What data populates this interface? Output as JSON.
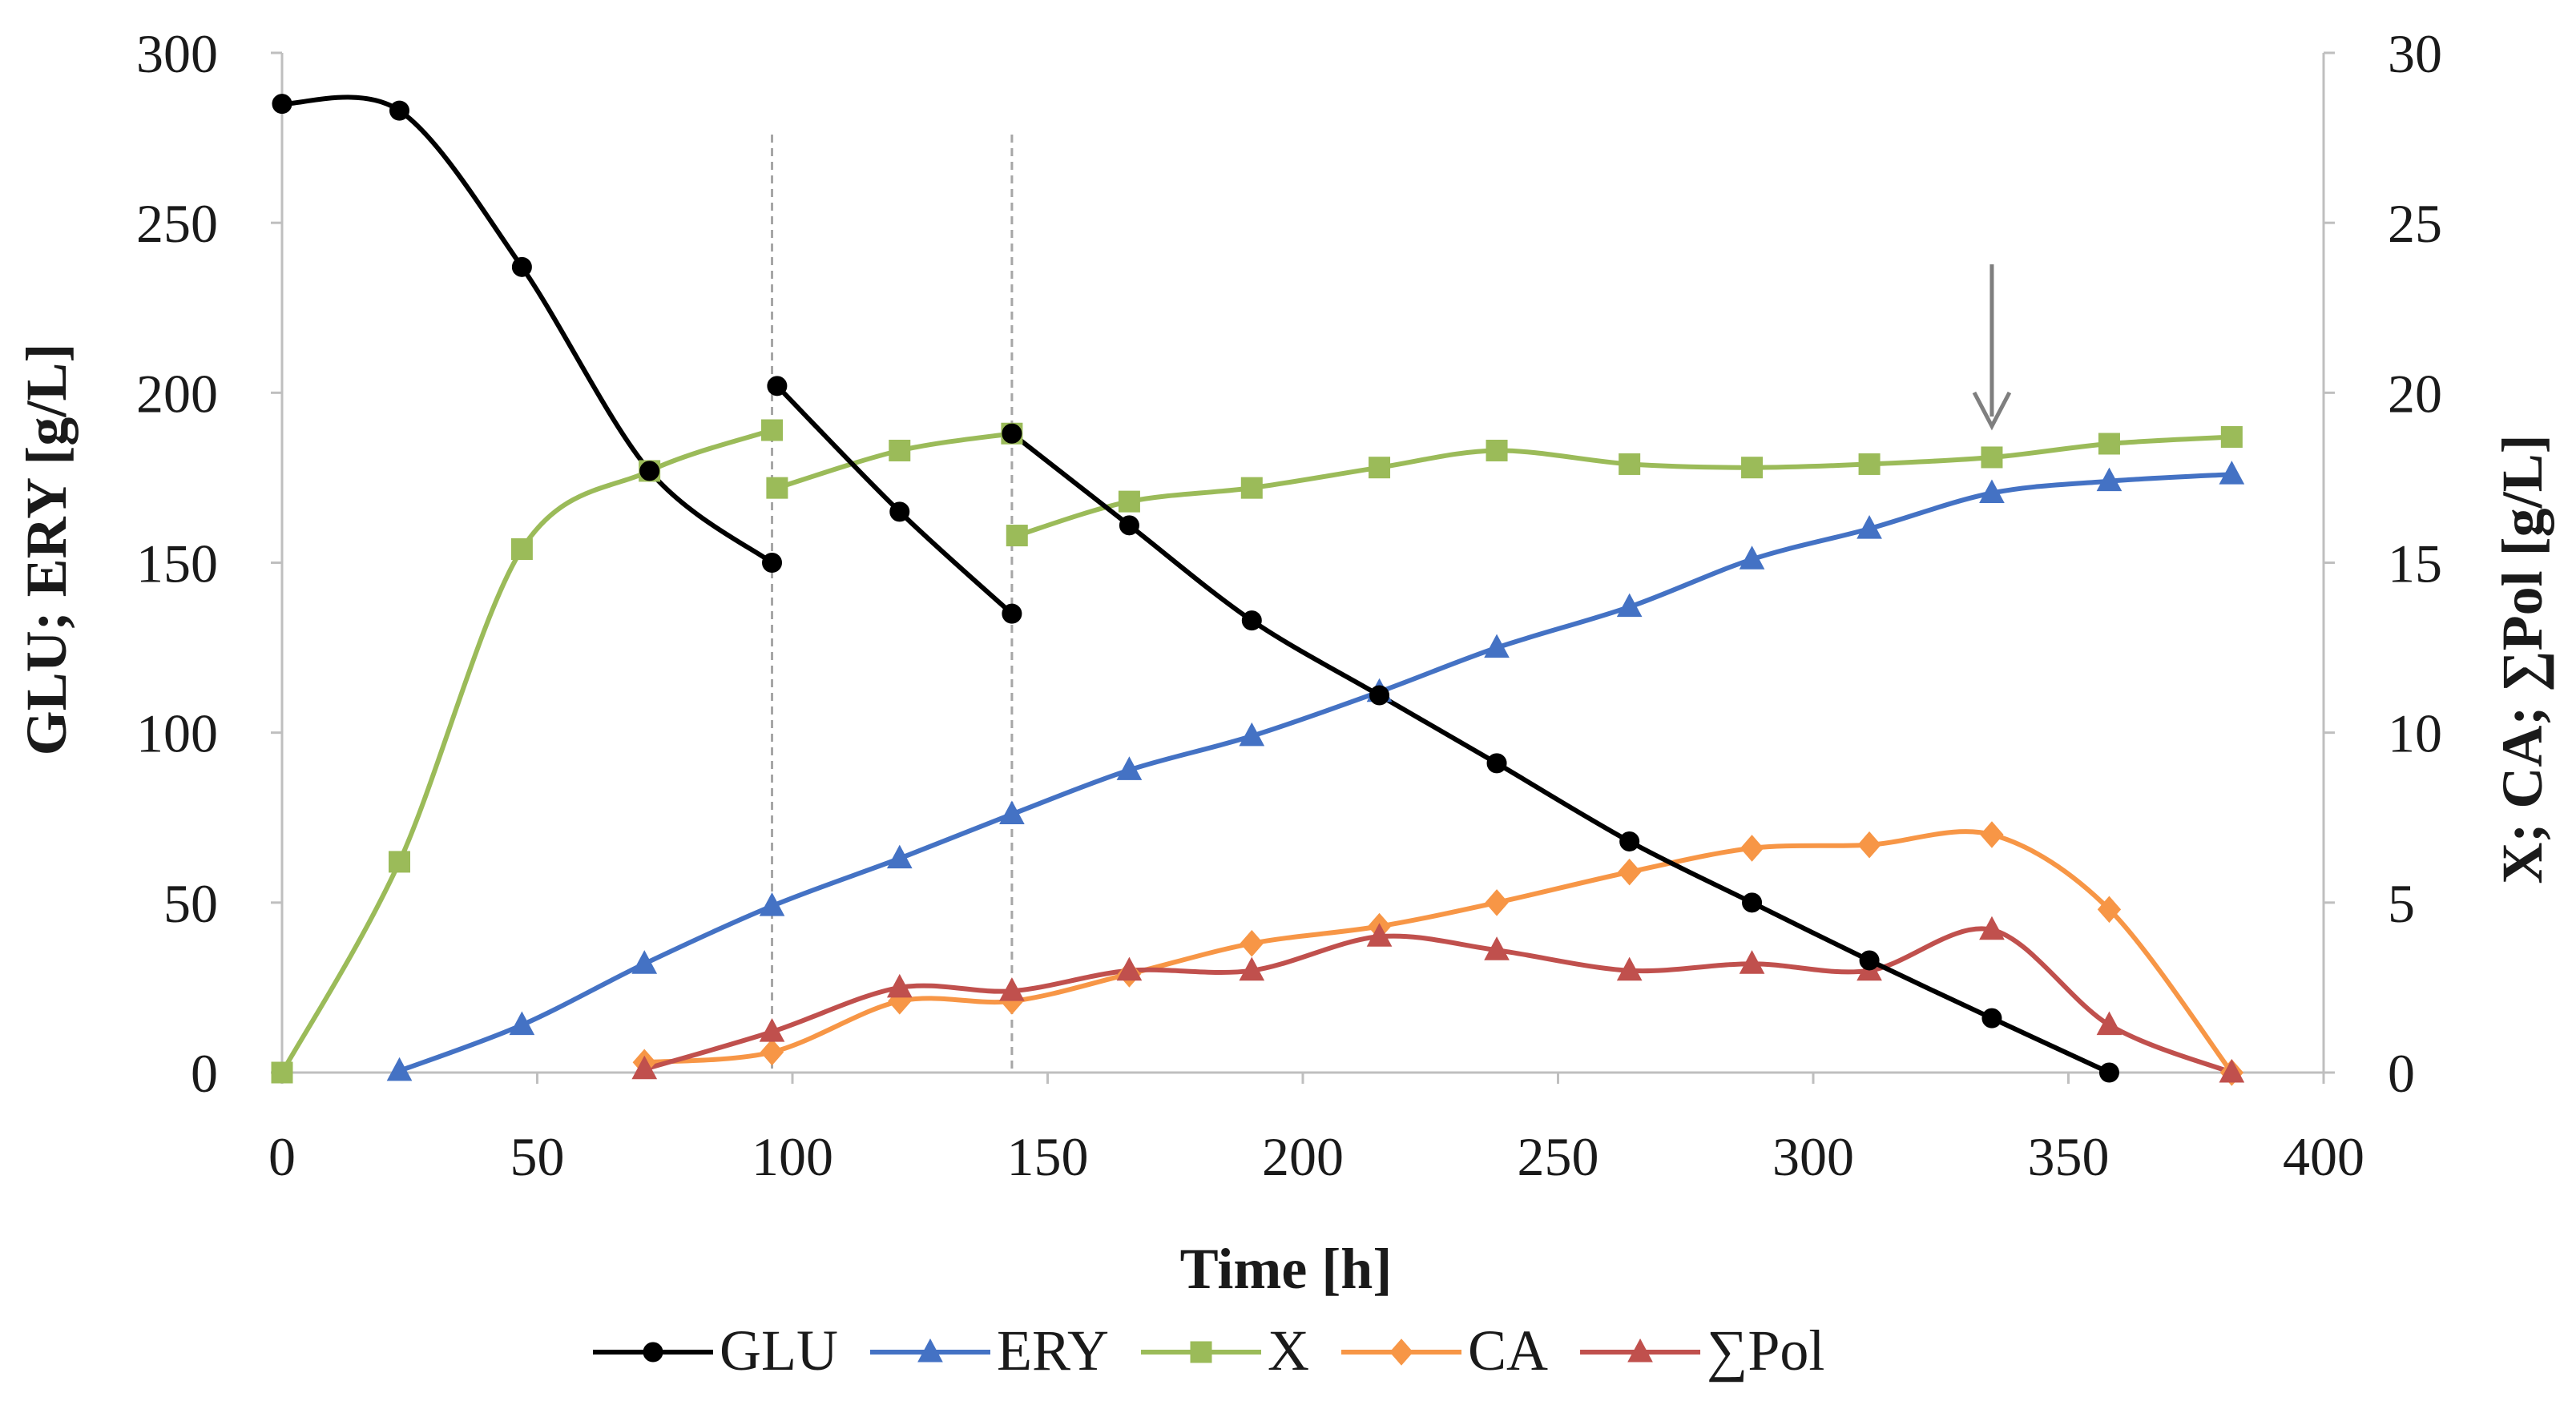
{
  "chart_data": {
    "type": "line",
    "xlabel": "Time [h]",
    "ylabel_left": "GLU; ERY [g/L]",
    "ylabel_right": "X; CA; ∑Pol [g/L]",
    "xlim": [
      0,
      400
    ],
    "ylim_left": [
      0,
      300
    ],
    "ylim_right": [
      0,
      30
    ],
    "xticks": [
      0,
      50,
      100,
      150,
      200,
      250,
      300,
      350,
      400
    ],
    "yticks_left": [
      0,
      50,
      100,
      150,
      200,
      250,
      300
    ],
    "yticks_right": [
      0,
      5,
      10,
      15,
      20,
      25,
      30
    ],
    "grid": false,
    "legend_position": "bottom",
    "vertical_lines": [
      96,
      143
    ],
    "annotation_arrow_x": 335,
    "series": [
      {
        "name": "GLU",
        "axis": "left",
        "color": "#000000",
        "marker": "circle",
        "segments": [
          [
            [
              0,
              285
            ],
            [
              23,
              283
            ],
            [
              47,
              237
            ],
            [
              72,
              177
            ],
            [
              96,
              150
            ]
          ],
          [
            [
              97,
              202
            ],
            [
              121,
              165
            ],
            [
              143,
              135
            ]
          ],
          [
            [
              143,
              188
            ],
            [
              166,
              161
            ],
            [
              190,
              133
            ],
            [
              215,
              111
            ],
            [
              238,
              91
            ],
            [
              264,
              68
            ],
            [
              288,
              50
            ],
            [
              311,
              33
            ],
            [
              335,
              16
            ],
            [
              358,
              0
            ]
          ]
        ]
      },
      {
        "name": "ERY",
        "axis": "left",
        "color": "#4472c4",
        "marker": "triangle",
        "segments": [
          [
            [
              23,
              0.5
            ],
            [
              47,
              14
            ],
            [
              71,
              32
            ],
            [
              96,
              49
            ],
            [
              121,
              63
            ],
            [
              143,
              76
            ],
            [
              166,
              89
            ],
            [
              190,
              99
            ],
            [
              215,
              112
            ],
            [
              238,
              125
            ],
            [
              264,
              137
            ],
            [
              288,
              151
            ],
            [
              311,
              160
            ],
            [
              335,
              170.5
            ],
            [
              358,
              174
            ],
            [
              382,
              176
            ]
          ]
        ]
      },
      {
        "name": "X",
        "axis": "right",
        "color": "#9bbb59",
        "marker": "square",
        "segments": [
          [
            [
              0,
              0
            ],
            [
              23,
              6.2
            ],
            [
              47,
              15.4
            ],
            [
              72,
              17.7
            ],
            [
              96,
              18.9
            ]
          ],
          [
            [
              97,
              17.2
            ],
            [
              121,
              18.3
            ],
            [
              143,
              18.8
            ]
          ],
          [
            [
              144,
              15.8
            ],
            [
              166,
              16.8
            ],
            [
              190,
              17.2
            ],
            [
              215,
              17.8
            ],
            [
              238,
              18.3
            ],
            [
              264,
              17.9
            ],
            [
              288,
              17.8
            ],
            [
              311,
              17.9
            ],
            [
              335,
              18.1
            ],
            [
              358,
              18.5
            ],
            [
              382,
              18.7
            ]
          ]
        ]
      },
      {
        "name": "CA",
        "axis": "right",
        "color": "#f79646",
        "marker": "diamond",
        "segments": [
          [
            [
              71,
              0.3
            ],
            [
              96,
              0.6
            ],
            [
              121,
              2.1
            ],
            [
              143,
              2.1
            ],
            [
              166,
              2.9
            ],
            [
              190,
              3.8
            ],
            [
              215,
              4.3
            ],
            [
              238,
              5.0
            ],
            [
              264,
              5.9
            ],
            [
              288,
              6.6
            ],
            [
              311,
              6.7
            ],
            [
              335,
              7.0
            ],
            [
              358,
              4.8
            ],
            [
              382,
              0
            ]
          ]
        ]
      },
      {
        "name": "∑Pol",
        "axis": "right",
        "color": "#c0504d",
        "marker": "triangle",
        "segments": [
          [
            [
              71,
              0.1
            ],
            [
              96,
              1.2
            ],
            [
              121,
              2.5
            ],
            [
              143,
              2.4
            ],
            [
              166,
              3.0
            ],
            [
              190,
              3.0
            ],
            [
              215,
              4.0
            ],
            [
              238,
              3.6
            ],
            [
              264,
              3.0
            ],
            [
              288,
              3.2
            ],
            [
              311,
              3.0
            ],
            [
              335,
              4.2
            ],
            [
              358,
              1.4
            ],
            [
              382,
              0
            ]
          ]
        ]
      }
    ]
  }
}
